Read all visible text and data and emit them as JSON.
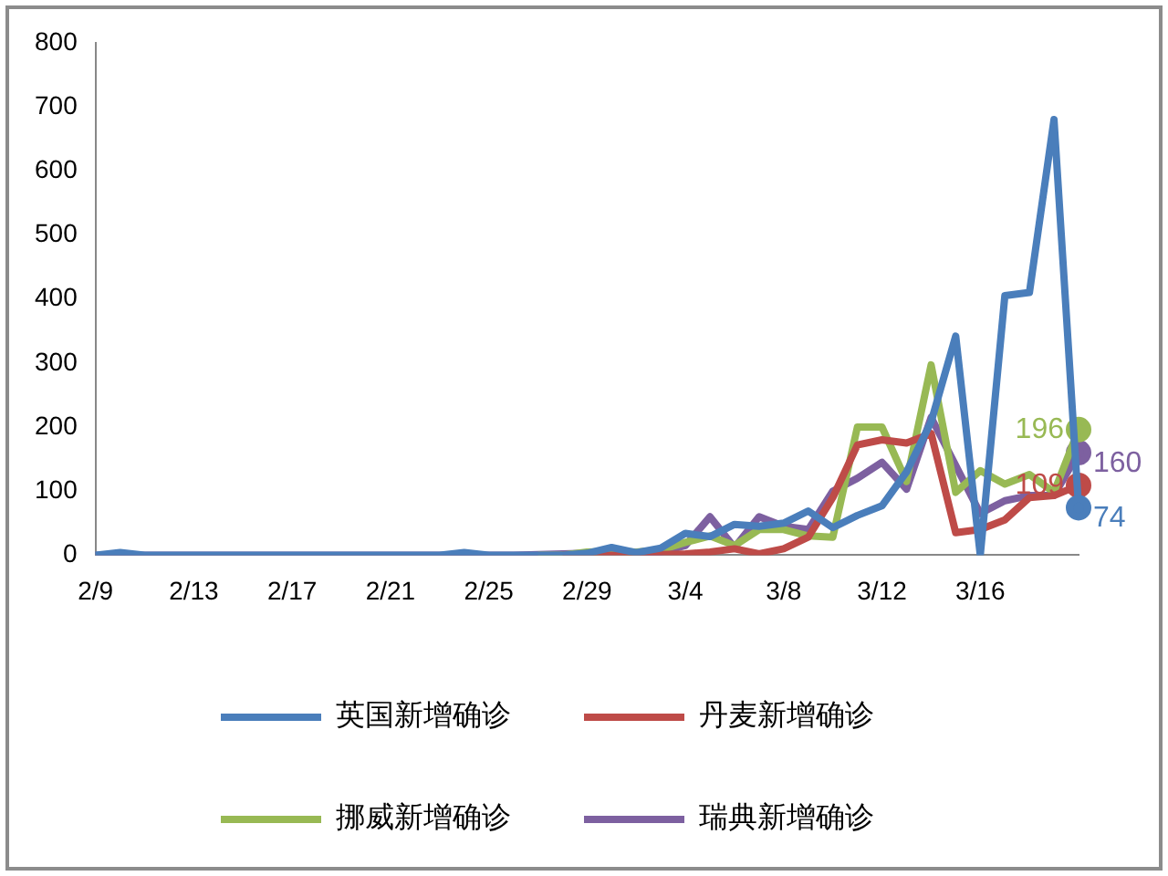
{
  "chart_data": {
    "type": "line",
    "categories": [
      "2/9",
      null,
      null,
      null,
      "2/13",
      null,
      null,
      null,
      "2/17",
      null,
      null,
      null,
      "2/21",
      null,
      null,
      null,
      "2/25",
      null,
      null,
      null,
      "2/29",
      null,
      null,
      null,
      "3/4",
      null,
      null,
      null,
      "3/8",
      null,
      null,
      null,
      "3/12",
      null,
      null,
      null,
      "3/16",
      null,
      null,
      null,
      null
    ],
    "series": [
      {
        "name": "英国新增确诊",
        "color": "#4a7ebb",
        "values": [
          0,
          4,
          0,
          0,
          0,
          0,
          0,
          0,
          0,
          0,
          0,
          0,
          0,
          0,
          0,
          4,
          0,
          0,
          0,
          0,
          3,
          12,
          4,
          11,
          34,
          29,
          48,
          45,
          50,
          69,
          43,
          62,
          77,
          130,
          208,
          342,
          0,
          405,
          410,
          680,
          74
        ],
        "value_labels": [
          null,
          null,
          null,
          null,
          null,
          null,
          null,
          null,
          null,
          null,
          null,
          null,
          null,
          null,
          null,
          null,
          null,
          null,
          null,
          null,
          null,
          null,
          null,
          null,
          null,
          null,
          null,
          null,
          null,
          null,
          null,
          null,
          null,
          null,
          null,
          null,
          null,
          null,
          null,
          null,
          "74"
        ]
      },
      {
        "name": "丹麦新增确诊",
        "color": "#be4b48",
        "values": [
          null,
          null,
          null,
          null,
          null,
          null,
          null,
          null,
          null,
          null,
          null,
          null,
          null,
          null,
          null,
          null,
          null,
          null,
          null,
          0,
          0,
          0,
          0,
          1,
          2,
          5,
          10,
          2,
          10,
          28,
          90,
          172,
          180,
          175,
          190,
          35,
          40,
          55,
          90,
          93,
          109
        ],
        "value_labels": [
          null,
          null,
          null,
          null,
          null,
          null,
          null,
          null,
          null,
          null,
          null,
          null,
          null,
          null,
          null,
          null,
          null,
          null,
          null,
          null,
          null,
          null,
          null,
          null,
          null,
          null,
          null,
          null,
          null,
          null,
          null,
          null,
          null,
          null,
          null,
          null,
          null,
          null,
          null,
          null,
          "109"
        ]
      },
      {
        "name": "挪威新增确诊",
        "color": "#98b954",
        "values": [
          null,
          null,
          null,
          null,
          null,
          null,
          null,
          null,
          null,
          null,
          null,
          null,
          null,
          null,
          null,
          null,
          null,
          null,
          0,
          0,
          5,
          6,
          5,
          8,
          20,
          30,
          15,
          40,
          40,
          30,
          28,
          200,
          200,
          115,
          297,
          98,
          132,
          111,
          126,
          98,
          196
        ],
        "value_labels": [
          null,
          null,
          null,
          null,
          null,
          null,
          null,
          null,
          null,
          null,
          null,
          null,
          null,
          null,
          null,
          null,
          null,
          null,
          null,
          null,
          null,
          null,
          null,
          null,
          null,
          null,
          null,
          null,
          null,
          null,
          null,
          null,
          null,
          null,
          null,
          null,
          null,
          null,
          null,
          null,
          "196"
        ]
      },
      {
        "name": "瑞典新增确诊",
        "color": "#7d60a0",
        "values": [
          0,
          0,
          0,
          0,
          0,
          0,
          0,
          0,
          0,
          0,
          0,
          0,
          0,
          0,
          0,
          0,
          0,
          0,
          1,
          2,
          3,
          4,
          2,
          5,
          15,
          60,
          12,
          60,
          45,
          40,
          100,
          120,
          145,
          103,
          215,
          140,
          65,
          85,
          93,
          93,
          160
        ],
        "value_labels": [
          null,
          null,
          null,
          null,
          null,
          null,
          null,
          null,
          null,
          null,
          null,
          null,
          null,
          null,
          null,
          null,
          null,
          null,
          null,
          null,
          null,
          null,
          null,
          null,
          null,
          null,
          null,
          null,
          null,
          null,
          null,
          null,
          null,
          null,
          null,
          null,
          null,
          null,
          null,
          null,
          "160"
        ]
      }
    ],
    "ylim": [
      0,
      800
    ],
    "yticks": [
      0,
      100,
      200,
      300,
      400,
      500,
      600,
      700,
      800
    ],
    "grid": false,
    "legend": "bottom",
    "marker": "none",
    "line_style": "solid"
  }
}
